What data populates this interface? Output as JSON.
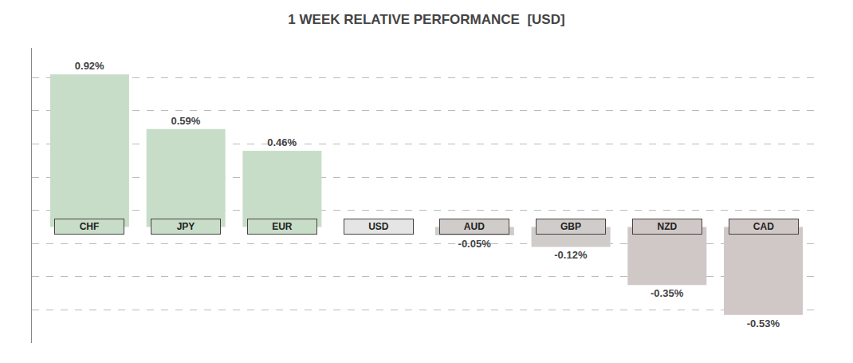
{
  "chart_data": {
    "type": "bar",
    "title": "1 WEEK RELATIVE PERFORMANCE  [USD]",
    "categories": [
      "CHF",
      "JPY",
      "EUR",
      "USD",
      "AUD",
      "GBP",
      "NZD",
      "CAD"
    ],
    "values": [
      0.92,
      0.59,
      0.46,
      0.0,
      -0.05,
      -0.12,
      -0.35,
      -0.53
    ],
    "value_labels": [
      "0.92%",
      "0.59%",
      "0.46%",
      null,
      "-0.05%",
      "-0.12%",
      "-0.35%",
      "-0.53%"
    ],
    "colors": [
      "#c8ddc8",
      "#c8ddc8",
      "#c8ddc8",
      null,
      "#d0ccca",
      "#d0ccca",
      "#cfc8c6",
      "#cfc8c6"
    ],
    "ylim": [
      -0.7,
      1.08
    ],
    "yticks": [
      -0.7,
      -0.5,
      -0.3,
      -0.1,
      0.1,
      0.3,
      0.5,
      0.7,
      0.9
    ],
    "grid": true,
    "tick_labels": false
  }
}
